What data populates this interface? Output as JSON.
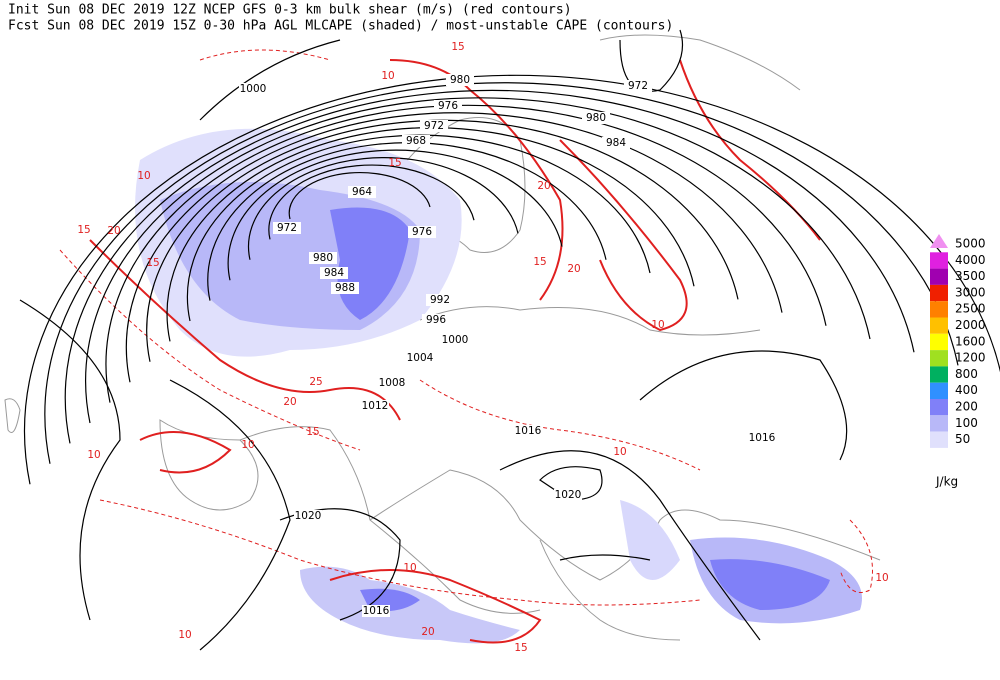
{
  "header": {
    "lines": [
      "Init  Sun 08 DEC 2019 12Z  NCEP GFS 0-3 km bulk shear (m/s) (red contours)",
      "Fcst Sun 08 DEC 2019 15Z  0-30 hPa AGL MLCAPE (shaded) / most-unstable CAPE (contours)"
    ]
  },
  "legend": {
    "levels": [
      {
        "label": "5000",
        "color": "#f090f0"
      },
      {
        "label": "4000",
        "color": "#e020e0"
      },
      {
        "label": "3500",
        "color": "#a000b0"
      },
      {
        "label": "3000",
        "color": "#f02000"
      },
      {
        "label": "2500",
        "color": "#ff8000"
      },
      {
        "label": "2000",
        "color": "#ffc000"
      },
      {
        "label": "1600",
        "color": "#ffff00"
      },
      {
        "label": "1200",
        "color": "#a0e020"
      },
      {
        "label": "800",
        "color": "#00b060"
      },
      {
        "label": "400",
        "color": "#3090ff"
      },
      {
        "label": "200",
        "color": "#8080f8"
      },
      {
        "label": "100",
        "color": "#b8b8f8"
      },
      {
        "label": "50",
        "color": "#e0e0fc"
      }
    ],
    "unit": "J/kg"
  },
  "isobar_labels": [
    "1000",
    "980",
    "976",
    "972",
    "968",
    "964",
    "972",
    "976",
    "980",
    "984",
    "988",
    "992",
    "996",
    "1000",
    "1004",
    "1008",
    "1012",
    "1016",
    "1016",
    "1020",
    "1020",
    "1016",
    "972",
    "980",
    "984"
  ],
  "shear_labels": [
    "15",
    "10",
    "15",
    "20",
    "10",
    "15",
    "20",
    "15",
    "20",
    "25",
    "20",
    "15",
    "10",
    "10",
    "10",
    "10",
    "20",
    "15",
    "10",
    "10",
    "15",
    "10"
  ]
}
